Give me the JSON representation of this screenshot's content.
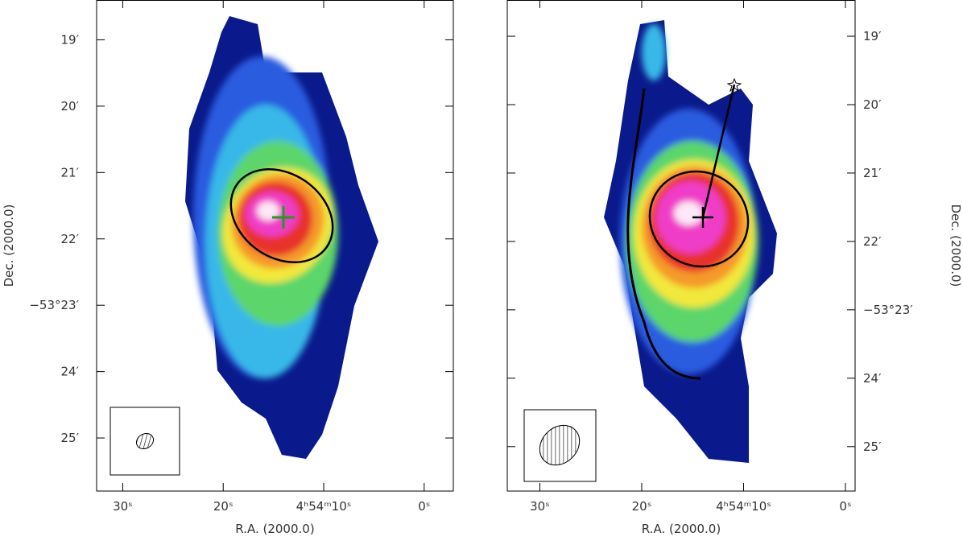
{
  "chart_data": [
    {
      "type": "image",
      "xlabel": "R.A. (2000.0)",
      "ylabel": "Dec. (2000.0)",
      "yaxis_position": "left",
      "xlim": [
        32.6,
        -2.9
      ],
      "ylim": [
        25.8,
        18.4
      ],
      "xticks": [
        {
          "value": 30,
          "label": "30ˢ"
        },
        {
          "value": 20,
          "label": "20ˢ"
        },
        {
          "value": 10,
          "label": "4ʰ54ᵐ10ˢ"
        },
        {
          "value": 0,
          "label": "0ˢ"
        }
      ],
      "yticks": [
        {
          "value": 19,
          "label": "19′"
        },
        {
          "value": 20,
          "label": "20′"
        },
        {
          "value": 21,
          "label": "21′"
        },
        {
          "value": 22,
          "label": "22′"
        },
        {
          "value": 23,
          "label": "−53°23′"
        },
        {
          "value": 24,
          "label": "24′"
        },
        {
          "value": 25,
          "label": "25′"
        }
      ]
    },
    {
      "type": "image",
      "xlabel": "R.A. (2000.0)",
      "ylabel": "Dec. (2000.0)",
      "yaxis_position": "right",
      "xlim": [
        33.2,
        -0.95
      ],
      "ylim": [
        25.65,
        18.47
      ],
      "xticks": [
        {
          "value": 30,
          "label": "30ˢ"
        },
        {
          "value": 20,
          "label": "20ˢ"
        },
        {
          "value": 10,
          "label": "4ʰ54ᵐ10ˢ"
        },
        {
          "value": 0,
          "label": "0ˢ"
        }
      ],
      "yticks": [
        {
          "value": 19,
          "label": "19′"
        },
        {
          "value": 20,
          "label": "20′"
        },
        {
          "value": 21,
          "label": "21′"
        },
        {
          "value": 22,
          "label": "22′"
        },
        {
          "value": 23,
          "label": "−53°23′"
        },
        {
          "value": 24,
          "label": "24′"
        },
        {
          "value": 25,
          "label": "25′"
        }
      ]
    }
  ]
}
